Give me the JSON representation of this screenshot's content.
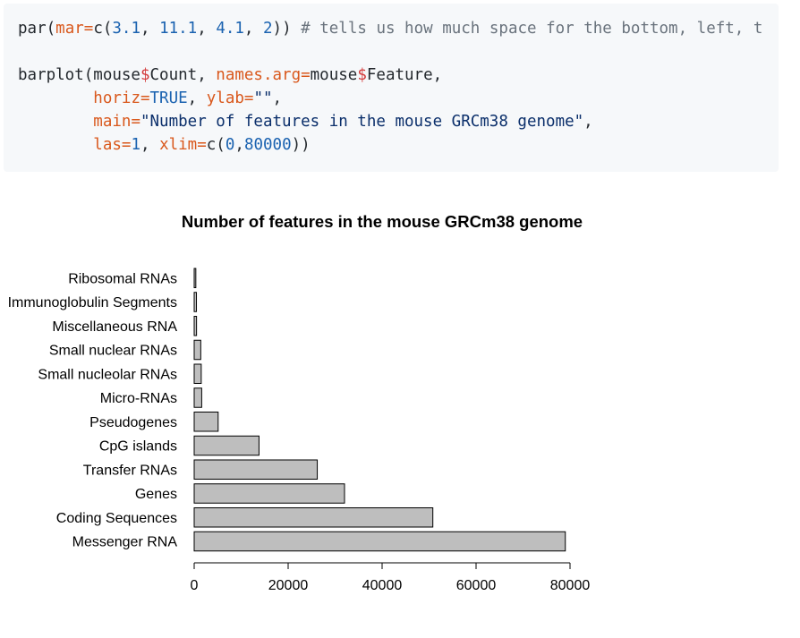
{
  "code": {
    "lines": [
      [
        {
          "t": "par(",
          "c": ""
        },
        {
          "t": "mar=",
          "c": "kw"
        },
        {
          "t": "c(",
          "c": ""
        },
        {
          "t": "3.1",
          "c": "num"
        },
        {
          "t": ", ",
          "c": ""
        },
        {
          "t": "11.1",
          "c": "num"
        },
        {
          "t": ", ",
          "c": ""
        },
        {
          "t": "4.1",
          "c": "num"
        },
        {
          "t": ", ",
          "c": ""
        },
        {
          "t": "2",
          "c": "num"
        },
        {
          "t": ")) ",
          "c": ""
        },
        {
          "t": "# tells us how much space for the bottom, left, t",
          "c": "comment"
        }
      ],
      [],
      [
        {
          "t": "barplot(mouse",
          "c": ""
        },
        {
          "t": "$",
          "c": "var"
        },
        {
          "t": "Count, ",
          "c": ""
        },
        {
          "t": "names.arg=",
          "c": "kw"
        },
        {
          "t": "mouse",
          "c": ""
        },
        {
          "t": "$",
          "c": "var"
        },
        {
          "t": "Feature,",
          "c": ""
        }
      ],
      [
        {
          "t": "        ",
          "c": ""
        },
        {
          "t": "horiz=",
          "c": "kw"
        },
        {
          "t": "TRUE",
          "c": "num"
        },
        {
          "t": ", ",
          "c": ""
        },
        {
          "t": "ylab=",
          "c": "kw"
        },
        {
          "t": "\"\"",
          "c": "str"
        },
        {
          "t": ",",
          "c": ""
        }
      ],
      [
        {
          "t": "        ",
          "c": ""
        },
        {
          "t": "main=",
          "c": "kw"
        },
        {
          "t": "\"Number of features in the mouse GRCm38 genome\"",
          "c": "str"
        },
        {
          "t": ",",
          "c": ""
        }
      ],
      [
        {
          "t": "        ",
          "c": ""
        },
        {
          "t": "las=",
          "c": "kw"
        },
        {
          "t": "1",
          "c": "num"
        },
        {
          "t": ", ",
          "c": ""
        },
        {
          "t": "xlim=",
          "c": "kw"
        },
        {
          "t": "c(",
          "c": ""
        },
        {
          "t": "0",
          "c": "num"
        },
        {
          "t": ",",
          "c": ""
        },
        {
          "t": "80000",
          "c": "num"
        },
        {
          "t": "))",
          "c": ""
        }
      ]
    ]
  },
  "chart_data": {
    "type": "bar",
    "orientation": "horizontal",
    "title": "Number of features in the mouse GRCm38 genome",
    "xlabel": "",
    "ylabel": "",
    "xlim": [
      0,
      80000
    ],
    "x_ticks": [
      0,
      20000,
      40000,
      60000,
      80000
    ],
    "grid": false,
    "bar_color": "#bebebe",
    "categories": [
      "Messenger RNA",
      "Coding Sequences",
      "Genes",
      "Transfer RNAs",
      "CpG islands",
      "Pseudogenes",
      "Micro-RNAs",
      "Small nucleolar RNAs",
      "Small nuclear RNAs",
      "Miscellaneous RNA",
      "Immunoglobulin Segments",
      "Ribosomal RNAs"
    ],
    "values": [
      79000,
      50800,
      32000,
      26200,
      13800,
      5100,
      1600,
      1500,
      1400,
      500,
      480,
      350
    ]
  }
}
